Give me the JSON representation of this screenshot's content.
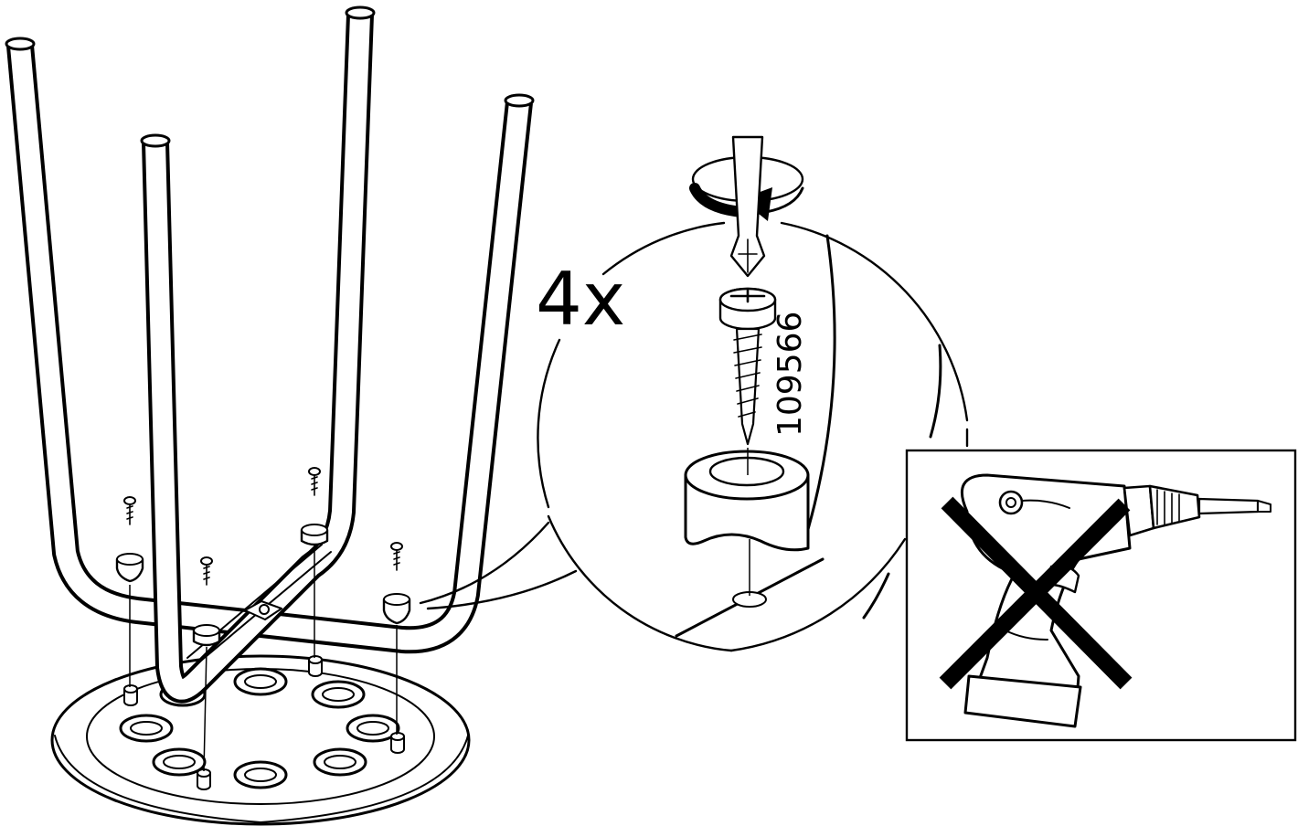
{
  "step": {
    "quantity_label": "4x",
    "part_number": "109566"
  },
  "icons": {
    "stool": "stool-frame-upside-down-icon",
    "screwdriver": "screwdriver-icon",
    "rotation": "clockwise-rotation-icon",
    "screw": "screw-icon",
    "sleeve": "leg-sleeve-icon",
    "drill": "power-drill-icon",
    "prohibited": "prohibited-x-icon"
  },
  "colors": {
    "ink": "#000000",
    "paper": "#ffffff"
  }
}
